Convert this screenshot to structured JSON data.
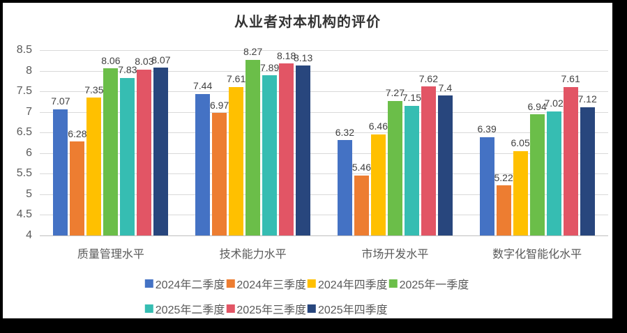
{
  "frame": {
    "border_color": "#000000",
    "canvas_color": "#ffffff"
  },
  "style": {
    "title_color": "#333333",
    "axis_label_color": "#595959",
    "data_label_color": "#404040",
    "grid_color": "#d9d9d9",
    "baseline_color": "#bfbfbf"
  },
  "chart_data": {
    "type": "bar",
    "title": "从业者对本机构的评价",
    "categories": [
      "质量管理水平",
      "技术能力水平",
      "市场开发水平",
      "数字化智能化水平"
    ],
    "series": [
      {
        "name": "2024年二季度",
        "color": "#4472C4",
        "values": [
          7.07,
          7.44,
          6.32,
          6.39
        ]
      },
      {
        "name": "2024年三季度",
        "color": "#ED7D31",
        "values": [
          6.28,
          6.97,
          5.46,
          5.22
        ]
      },
      {
        "name": "2024年四季度",
        "color": "#FFC000",
        "values": [
          7.35,
          7.61,
          6.46,
          6.05
        ]
      },
      {
        "name": "2025年一季度",
        "color": "#6BBE49",
        "values": [
          8.06,
          8.27,
          7.27,
          6.94
        ]
      },
      {
        "name": "2025年二季度",
        "color": "#36BDB2",
        "values": [
          7.83,
          7.89,
          7.15,
          7.02
        ]
      },
      {
        "name": "2025年三季度",
        "color": "#E25565",
        "values": [
          8.03,
          8.18,
          7.62,
          7.61
        ]
      },
      {
        "name": "2025年四季度",
        "color": "#28467D",
        "values": [
          8.07,
          8.13,
          7.4,
          7.12
        ]
      }
    ],
    "y_axis": {
      "min": 4,
      "max": 8.5,
      "step": 0.5,
      "tick_labels": [
        "8.5",
        "8",
        "7.5",
        "7",
        "6.5",
        "6",
        "5.5",
        "5",
        "4.5",
        "4"
      ]
    },
    "grid": true,
    "data_labels": true,
    "legend_position": "bottom",
    "legend_rows": [
      [
        0,
        1,
        2,
        3
      ],
      [
        4,
        5,
        6
      ]
    ]
  }
}
